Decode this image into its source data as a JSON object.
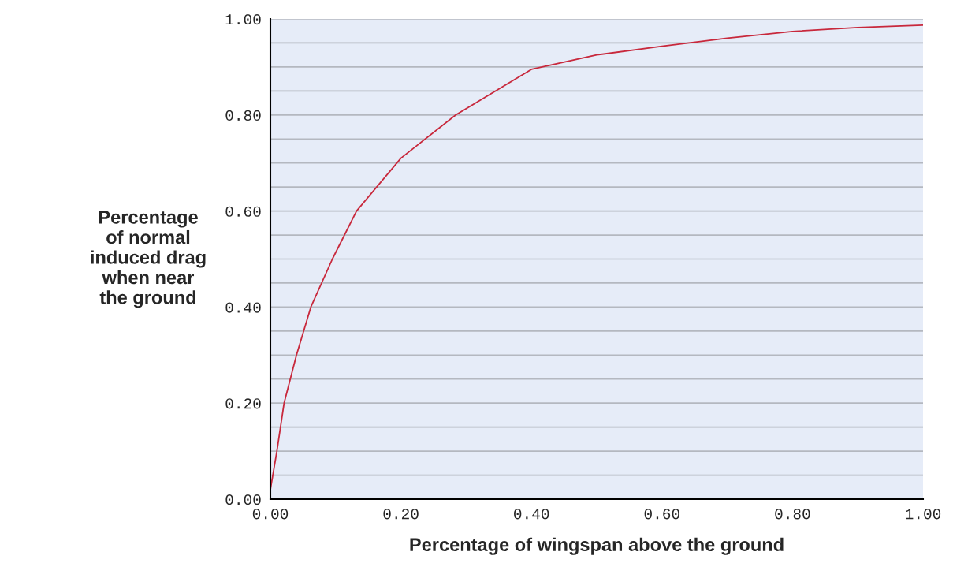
{
  "chart_data": {
    "type": "line",
    "xlabel": "Percentage of wingspan above the ground",
    "ylabel": "Percentage\nof normal\ninduced drag\nwhen near\nthe ground",
    "x": [
      0,
      0.01,
      0.021,
      0.04,
      0.062,
      0.095,
      0.132,
      0.2,
      0.284,
      0.4,
      0.5,
      0.6,
      0.7,
      0.8,
      0.9,
      1.0
    ],
    "series": [
      {
        "color": "#c8283c",
        "values": [
          0.02,
          0.1,
          0.2,
          0.3,
          0.4,
          0.5,
          0.6,
          0.71,
          0.8,
          0.895,
          0.925,
          0.943,
          0.96,
          0.974,
          0.982,
          0.987
        ]
      }
    ],
    "xlim": [
      0,
      1
    ],
    "ylim": [
      0,
      1
    ],
    "xticks": [
      {
        "value": 0,
        "label": "0.00"
      },
      {
        "value": 0.2,
        "label": "0.20"
      },
      {
        "value": 0.4,
        "label": "0.40"
      },
      {
        "value": 0.6,
        "label": "0.60"
      },
      {
        "value": 0.8,
        "label": "0.80"
      },
      {
        "value": 1,
        "label": "1.00"
      }
    ],
    "yticks": [
      {
        "value": 0,
        "label": "0.00"
      },
      {
        "value": 0.05,
        "label": null
      },
      {
        "value": 0.1,
        "label": null
      },
      {
        "value": 0.15,
        "label": null
      },
      {
        "value": 0.2,
        "label": "0.20"
      },
      {
        "value": 0.25,
        "label": null
      },
      {
        "value": 0.3,
        "label": null
      },
      {
        "value": 0.35,
        "label": null
      },
      {
        "value": 0.4,
        "label": "0.40"
      },
      {
        "value": 0.45,
        "label": null
      },
      {
        "value": 0.5,
        "label": null
      },
      {
        "value": 0.55,
        "label": null
      },
      {
        "value": 0.6,
        "label": "0.60"
      },
      {
        "value": 0.65,
        "label": null
      },
      {
        "value": 0.7,
        "label": null
      },
      {
        "value": 0.75,
        "label": null
      },
      {
        "value": 0.8,
        "label": "0.80"
      },
      {
        "value": 0.85,
        "label": null
      },
      {
        "value": 0.9,
        "label": null
      },
      {
        "value": 0.95,
        "label": null
      },
      {
        "value": 1,
        "label": "1.00"
      }
    ],
    "grid": "y",
    "marker": "none",
    "line_style": "solid"
  }
}
